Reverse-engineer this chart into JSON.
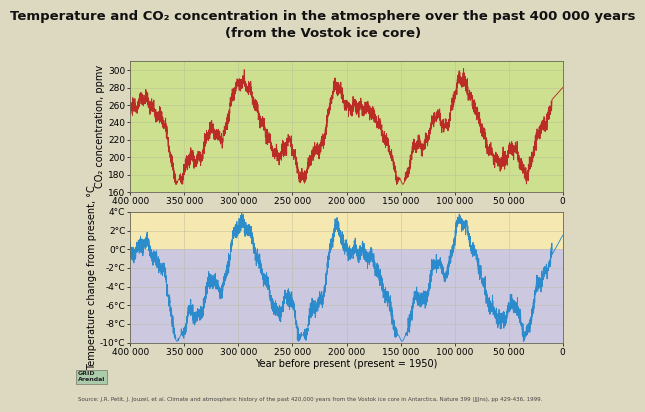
{
  "title": "Temperature and CO₂ concentration in the atmosphere over the past 400 000 years\n(from the Vostok ice core)",
  "co2_ylabel": "CO₂ concentration, ppmv",
  "temp_ylabel": "Temperature change from present, °C",
  "xlabel": "Year before present (present = 1950)",
  "background_color": "#ddd8c0",
  "co2_bg_color": "#cce090",
  "temp_bg_warm_color": "#f5e8b0",
  "temp_bg_cool_color": "#ccc8e0",
  "co2_line_color": "#bb2222",
  "temp_line_color": "#2288cc",
  "co2_ylim": [
    160,
    310
  ],
  "temp_ylim": [
    -10,
    4
  ],
  "co2_yticks": [
    160,
    180,
    200,
    220,
    240,
    260,
    280,
    300
  ],
  "temp_yticks": [
    -10,
    -8,
    -6,
    -4,
    -2,
    0,
    2,
    4
  ],
  "temp_ytick_labels": [
    "-10°C",
    "-8°C",
    "-6°C",
    "-4°C",
    "-2°C",
    "0°C",
    "2°C",
    "4°C"
  ],
  "xticks": [
    400000,
    350000,
    300000,
    250000,
    200000,
    150000,
    100000,
    50000,
    0
  ],
  "xtick_labels": [
    "400 000",
    "350 000",
    "300 000",
    "250 000",
    "200 000",
    "150 000",
    "100 000",
    "50 000",
    "0"
  ],
  "source_text": "Source: J.R. Petit, J. Jouzel, et al. Climate and atmospheric history of the past 420,000 years from the Vostok ice core in Antarctica, Nature 399 (JJJns), pp 429-436, 1999.",
  "grid_color": "#bbbb99",
  "title_fontsize": 9.5,
  "label_fontsize": 7,
  "tick_fontsize": 6.5
}
